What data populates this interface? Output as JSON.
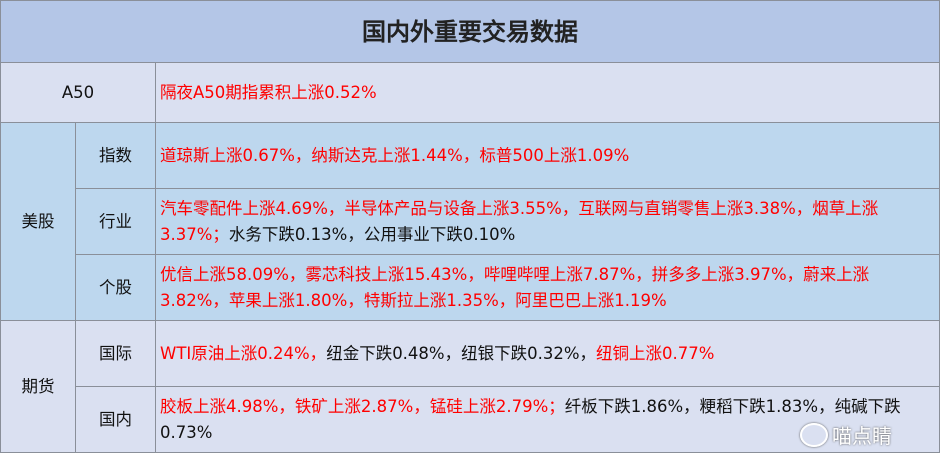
{
  "title": "国内外重要交易数据",
  "rows": {
    "a50": {
      "label": "A50",
      "segments": [
        {
          "text": "隔夜A50期指累积上涨0.52%",
          "color": "red"
        }
      ]
    },
    "us": {
      "group": "美股",
      "index": {
        "label": "指数",
        "segments": [
          {
            "text": "道琼斯上涨0.67%，纳斯达克上涨1.44%，标普500上涨1.09%",
            "color": "red"
          }
        ]
      },
      "industry": {
        "label": "行业",
        "segments": [
          {
            "text": "汽车零配件上涨4.69%，半导体产品与设备上涨3.55%，互联网与直销零售上涨3.38%，烟草上涨3.37%；",
            "color": "red"
          },
          {
            "text": "水务下跌0.13%，公用事业下跌0.10%",
            "color": "black"
          }
        ]
      },
      "stocks": {
        "label": "个股",
        "segments": [
          {
            "text": "优信上涨58.09%，雾芯科技上涨15.43%，哔哩哔哩上涨7.87%，拼多多上涨3.97%，蔚来上涨3.82%，苹果上涨1.80%，特斯拉上涨1.35%，阿里巴巴上涨1.19%",
            "color": "red"
          }
        ]
      }
    },
    "futures": {
      "group": "期货",
      "intl": {
        "label": "国际",
        "segments": [
          {
            "text": "WTI原油上涨0.24%，",
            "color": "red"
          },
          {
            "text": "纽金下跌0.48%，纽银下跌0.32%，",
            "color": "black"
          },
          {
            "text": "纽铜上涨0.77%",
            "color": "red"
          }
        ]
      },
      "domestic": {
        "label": "国内",
        "segments": [
          {
            "text": "胶板上涨4.98%，铁矿上涨2.87%，锰硅上涨2.79%；",
            "color": "red"
          },
          {
            "text": "纤板下跌1.86%，粳稻下跌1.83%，纯碱下跌0.73%",
            "color": "black"
          }
        ]
      }
    }
  },
  "watermark": "喵点睛",
  "colors": {
    "up": "#ff0000",
    "down": "#111111",
    "header": "#b4c6e7",
    "lavender": "#dae0f1",
    "blue": "#bdd7ee"
  }
}
